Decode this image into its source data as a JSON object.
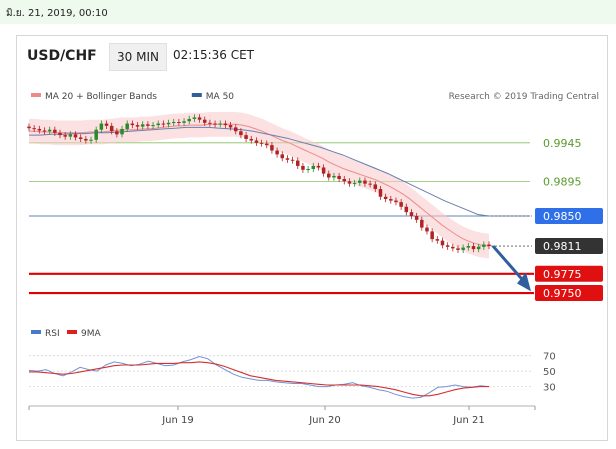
{
  "datestamp": "มิ.ย. 21, 2019, 00:10",
  "header": {
    "symbol": "USD/CHF",
    "timeframe": "30 MIN",
    "time": "02:15:36 CET"
  },
  "legend_main": [
    {
      "label": "MA 20 + Bollinger Bands",
      "color": "#f08a8a"
    },
    {
      "label": "MA 50",
      "color": "#2f5f9e"
    }
  ],
  "watermark": "Research © 2019 Trading Central",
  "legend_rsi": [
    {
      "label": "RSI",
      "color": "#4a78c8"
    },
    {
      "label": "9MA",
      "color": "#e02020"
    }
  ],
  "colors": {
    "up": "#2a8a2a",
    "down": "#b22222",
    "support": "#e00000",
    "resistance": "#88c060",
    "pivot": "#2f5f9e",
    "price_label": "#333333",
    "arrow": "#2f5f9e"
  },
  "chart_data": [
    {
      "type": "line",
      "title": "",
      "x_labels": [
        "Jun 19",
        "Jun 20",
        "Jun 21"
      ],
      "ylim": [
        0.9728,
        0.9985
      ],
      "levels": [
        {
          "value": 0.9945,
          "label": "0.9945",
          "kind": "resistance"
        },
        {
          "value": 0.9895,
          "label": "0.9895",
          "kind": "resistance"
        },
        {
          "value": 0.985,
          "label": "0.9850",
          "kind": "pivot"
        },
        {
          "value": 0.9811,
          "label": "0.9811",
          "kind": "last"
        },
        {
          "value": 0.9775,
          "label": "0.9775",
          "kind": "support"
        },
        {
          "value": 0.975,
          "label": "0.9750",
          "kind": "support"
        }
      ],
      "close": [
        0.9964,
        0.9963,
        0.9961,
        0.996,
        0.9962,
        0.9958,
        0.9955,
        0.9953,
        0.9956,
        0.9952,
        0.995,
        0.9948,
        0.9949,
        0.9962,
        0.997,
        0.9967,
        0.996,
        0.9956,
        0.9963,
        0.997,
        0.9968,
        0.9966,
        0.9969,
        0.9967,
        0.9968,
        0.997,
        0.9969,
        0.9971,
        0.9972,
        0.9971,
        0.9973,
        0.9976,
        0.9978,
        0.9975,
        0.9971,
        0.997,
        0.9969,
        0.997,
        0.9968,
        0.9965,
        0.996,
        0.9955,
        0.995,
        0.9948,
        0.9945,
        0.9944,
        0.9942,
        0.9935,
        0.993,
        0.9925,
        0.9923,
        0.9922,
        0.9915,
        0.991,
        0.9911,
        0.9915,
        0.9913,
        0.9905,
        0.99,
        0.9902,
        0.9898,
        0.9895,
        0.9892,
        0.9893,
        0.9896,
        0.9892,
        0.9891,
        0.9885,
        0.9875,
        0.9872,
        0.987,
        0.9868,
        0.9862,
        0.9855,
        0.985,
        0.9845,
        0.9835,
        0.983,
        0.982,
        0.9818,
        0.9812,
        0.981,
        0.9808,
        0.9806,
        0.9809,
        0.9811,
        0.9807,
        0.981,
        0.9813,
        0.9811
      ],
      "ma20": [
        0.996,
        0.996,
        0.9959,
        0.9959,
        0.9958,
        0.9958,
        0.9958,
        0.9958,
        0.9958,
        0.9959,
        0.9959,
        0.9959,
        0.996,
        0.9961,
        0.9962,
        0.9962,
        0.9962,
        0.9963,
        0.9963,
        0.9964,
        0.9965,
        0.9966,
        0.9967,
        0.9967,
        0.9968,
        0.9968,
        0.9968,
        0.9969,
        0.9969,
        0.9969,
        0.9969,
        0.9969,
        0.9968,
        0.9966,
        0.9963,
        0.996,
        0.9956,
        0.9952,
        0.9948,
        0.9945,
        0.9941,
        0.9937,
        0.9933,
        0.9929,
        0.9925,
        0.992,
        0.9916,
        0.9912,
        0.9909,
        0.9906,
        0.9903,
        0.99,
        0.9897,
        0.9893,
        0.9889,
        0.9884,
        0.9879,
        0.9873,
        0.9866,
        0.9859,
        0.9852,
        0.9845,
        0.9838,
        0.9832,
        0.9826,
        0.9821,
        0.9817,
        0.9814,
        0.9812,
        0.9811
      ],
      "ma50": [
        0.9955,
        0.9955,
        0.9956,
        0.9956,
        0.9957,
        0.9957,
        0.9958,
        0.9958,
        0.9959,
        0.996,
        0.9961,
        0.9962,
        0.9963,
        0.9964,
        0.9965,
        0.9965,
        0.9965,
        0.9964,
        0.9963,
        0.9962,
        0.996,
        0.9957,
        0.9954,
        0.9951,
        0.9947,
        0.9943,
        0.9939,
        0.9934,
        0.9929,
        0.9923,
        0.9917,
        0.9911,
        0.9905,
        0.9898,
        0.9891,
        0.9884,
        0.9877,
        0.987,
        0.9864,
        0.9858,
        0.9852,
        0.985
      ],
      "band_width": 0.0016
    },
    {
      "type": "line",
      "title": "RSI",
      "ylim": [
        10,
        80
      ],
      "levels": [
        70,
        50,
        30
      ],
      "rsi": [
        51,
        50,
        52,
        47,
        44,
        49,
        55,
        52,
        50,
        58,
        62,
        60,
        57,
        59,
        63,
        60,
        57,
        58,
        62,
        65,
        69,
        66,
        58,
        52,
        46,
        42,
        40,
        38,
        38,
        36,
        35,
        34,
        34,
        32,
        30,
        30,
        32,
        33,
        35,
        31,
        29,
        26,
        24,
        20,
        17,
        15,
        16,
        22,
        29,
        30,
        32,
        30,
        29,
        31,
        30
      ],
      "ma9": [
        49,
        49,
        48,
        47,
        46,
        47,
        49,
        51,
        53,
        55,
        57,
        58,
        58,
        58,
        59,
        60,
        60,
        60,
        61,
        61,
        62,
        61,
        59,
        56,
        52,
        48,
        44,
        42,
        40,
        38,
        37,
        36,
        35,
        34,
        33,
        32,
        32,
        32,
        32,
        32,
        31,
        30,
        28,
        26,
        23,
        20,
        18,
        18,
        20,
        23,
        26,
        28,
        29,
        30,
        30
      ]
    }
  ]
}
